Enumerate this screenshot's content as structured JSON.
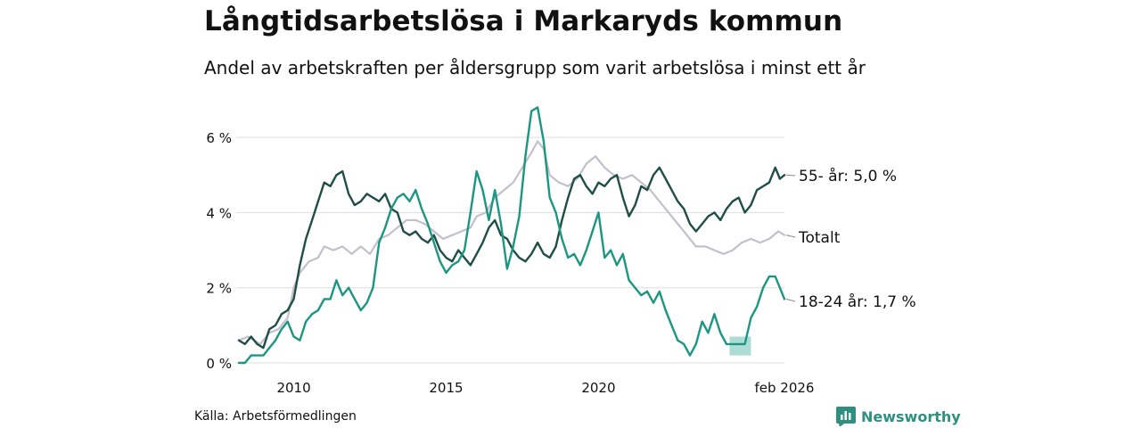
{
  "title": "Långtidsarbetslösa i Markaryds kommun",
  "subtitle": "Andel av arbetskraften per åldersgrupp som varit arbetslösa i minst ett år",
  "source": "Källa: Arbetsförmedlingen",
  "brand": "Newsworthy",
  "colors": {
    "older": "#1f4e45",
    "total": "#c3bfcb",
    "young": "#1c9683",
    "band": "#9ed6cc",
    "grid": "#dddddd",
    "brand": "#2f8f80"
  },
  "chart_data": {
    "type": "line",
    "title": "Långtidsarbetslösa i Markaryds kommun",
    "xlabel": "",
    "ylabel": "",
    "x_range": [
      2008.2,
      2026.1
    ],
    "ylim": [
      0,
      7
    ],
    "y_ticks": [
      0,
      2,
      4,
      6
    ],
    "y_tick_labels": [
      "0 %",
      "2 %",
      "4 %",
      "6 %"
    ],
    "x_ticks": [
      2010,
      2015,
      2020,
      2026.1
    ],
    "x_tick_labels": [
      "2010",
      "2015",
      "2020",
      "feb 2026"
    ],
    "grid": true,
    "series": [
      {
        "name": "Totalt",
        "label": "Totalt",
        "color_key": "total",
        "points": [
          [
            2008.2,
            0.6
          ],
          [
            2008.5,
            0.7
          ],
          [
            2008.9,
            0.5
          ],
          [
            2009.2,
            0.8
          ],
          [
            2009.5,
            0.9
          ],
          [
            2009.8,
            1.2
          ],
          [
            2010.0,
            2.0
          ],
          [
            2010.2,
            2.4
          ],
          [
            2010.5,
            2.7
          ],
          [
            2010.8,
            2.8
          ],
          [
            2011.0,
            3.1
          ],
          [
            2011.3,
            3.0
          ],
          [
            2011.6,
            3.1
          ],
          [
            2011.9,
            2.9
          ],
          [
            2012.2,
            3.1
          ],
          [
            2012.5,
            2.9
          ],
          [
            2012.8,
            3.3
          ],
          [
            2013.1,
            3.4
          ],
          [
            2013.4,
            3.6
          ],
          [
            2013.7,
            3.8
          ],
          [
            2014.0,
            3.8
          ],
          [
            2014.3,
            3.7
          ],
          [
            2014.6,
            3.5
          ],
          [
            2014.9,
            3.3
          ],
          [
            2015.2,
            3.4
          ],
          [
            2015.5,
            3.5
          ],
          [
            2015.8,
            3.6
          ],
          [
            2016.0,
            3.9
          ],
          [
            2016.3,
            4.0
          ],
          [
            2016.6,
            4.4
          ],
          [
            2016.9,
            4.6
          ],
          [
            2017.2,
            4.8
          ],
          [
            2017.5,
            5.2
          ],
          [
            2017.8,
            5.6
          ],
          [
            2018.0,
            5.9
          ],
          [
            2018.2,
            5.7
          ],
          [
            2018.4,
            5.0
          ],
          [
            2018.7,
            4.8
          ],
          [
            2019.0,
            4.7
          ],
          [
            2019.3,
            4.9
          ],
          [
            2019.6,
            5.3
          ],
          [
            2019.9,
            5.5
          ],
          [
            2020.2,
            5.2
          ],
          [
            2020.5,
            5.0
          ],
          [
            2020.8,
            4.9
          ],
          [
            2021.1,
            5.0
          ],
          [
            2021.4,
            4.8
          ],
          [
            2021.7,
            4.6
          ],
          [
            2022.0,
            4.3
          ],
          [
            2022.3,
            4.0
          ],
          [
            2022.6,
            3.7
          ],
          [
            2022.9,
            3.4
          ],
          [
            2023.2,
            3.1
          ],
          [
            2023.5,
            3.1
          ],
          [
            2023.8,
            3.0
          ],
          [
            2024.1,
            2.9
          ],
          [
            2024.4,
            3.0
          ],
          [
            2024.7,
            3.2
          ],
          [
            2025.0,
            3.3
          ],
          [
            2025.3,
            3.2
          ],
          [
            2025.6,
            3.3
          ],
          [
            2025.9,
            3.5
          ],
          [
            2026.1,
            3.4
          ]
        ]
      },
      {
        "name": "55- år",
        "label": "55- år: 5,0 %",
        "color_key": "older",
        "points": [
          [
            2008.2,
            0.6
          ],
          [
            2008.4,
            0.5
          ],
          [
            2008.6,
            0.7
          ],
          [
            2008.8,
            0.5
          ],
          [
            2009.0,
            0.4
          ],
          [
            2009.2,
            0.9
          ],
          [
            2009.4,
            1.0
          ],
          [
            2009.6,
            1.3
          ],
          [
            2009.8,
            1.4
          ],
          [
            2010.0,
            1.7
          ],
          [
            2010.2,
            2.6
          ],
          [
            2010.4,
            3.3
          ],
          [
            2010.6,
            3.8
          ],
          [
            2010.8,
            4.3
          ],
          [
            2011.0,
            4.8
          ],
          [
            2011.2,
            4.7
          ],
          [
            2011.4,
            5.0
          ],
          [
            2011.6,
            5.1
          ],
          [
            2011.8,
            4.5
          ],
          [
            2012.0,
            4.2
          ],
          [
            2012.2,
            4.3
          ],
          [
            2012.4,
            4.5
          ],
          [
            2012.6,
            4.4
          ],
          [
            2012.8,
            4.3
          ],
          [
            2013.0,
            4.5
          ],
          [
            2013.2,
            4.1
          ],
          [
            2013.4,
            4.0
          ],
          [
            2013.6,
            3.5
          ],
          [
            2013.8,
            3.4
          ],
          [
            2014.0,
            3.5
          ],
          [
            2014.2,
            3.3
          ],
          [
            2014.4,
            3.2
          ],
          [
            2014.6,
            3.4
          ],
          [
            2014.8,
            3.0
          ],
          [
            2015.0,
            2.8
          ],
          [
            2015.2,
            2.7
          ],
          [
            2015.4,
            3.0
          ],
          [
            2015.6,
            2.8
          ],
          [
            2015.8,
            2.6
          ],
          [
            2016.0,
            2.9
          ],
          [
            2016.2,
            3.2
          ],
          [
            2016.4,
            3.6
          ],
          [
            2016.6,
            3.8
          ],
          [
            2016.8,
            3.4
          ],
          [
            2017.0,
            3.3
          ],
          [
            2017.2,
            3.0
          ],
          [
            2017.4,
            2.8
          ],
          [
            2017.6,
            2.7
          ],
          [
            2017.8,
            2.9
          ],
          [
            2018.0,
            3.2
          ],
          [
            2018.2,
            2.9
          ],
          [
            2018.4,
            2.8
          ],
          [
            2018.6,
            3.1
          ],
          [
            2018.8,
            3.8
          ],
          [
            2019.0,
            4.4
          ],
          [
            2019.2,
            4.9
          ],
          [
            2019.4,
            5.0
          ],
          [
            2019.6,
            4.7
          ],
          [
            2019.8,
            4.5
          ],
          [
            2020.0,
            4.8
          ],
          [
            2020.2,
            4.7
          ],
          [
            2020.4,
            4.9
          ],
          [
            2020.6,
            5.0
          ],
          [
            2020.8,
            4.4
          ],
          [
            2021.0,
            3.9
          ],
          [
            2021.2,
            4.2
          ],
          [
            2021.4,
            4.7
          ],
          [
            2021.6,
            4.6
          ],
          [
            2021.8,
            5.0
          ],
          [
            2022.0,
            5.2
          ],
          [
            2022.2,
            4.9
          ],
          [
            2022.4,
            4.6
          ],
          [
            2022.6,
            4.3
          ],
          [
            2022.8,
            4.1
          ],
          [
            2023.0,
            3.7
          ],
          [
            2023.2,
            3.5
          ],
          [
            2023.4,
            3.7
          ],
          [
            2023.6,
            3.9
          ],
          [
            2023.8,
            4.0
          ],
          [
            2024.0,
            3.8
          ],
          [
            2024.2,
            4.1
          ],
          [
            2024.4,
            4.3
          ],
          [
            2024.6,
            4.4
          ],
          [
            2024.8,
            4.0
          ],
          [
            2025.0,
            4.2
          ],
          [
            2025.2,
            4.6
          ],
          [
            2025.4,
            4.7
          ],
          [
            2025.6,
            4.8
          ],
          [
            2025.8,
            5.2
          ],
          [
            2025.95,
            4.9
          ],
          [
            2026.1,
            5.0
          ]
        ]
      },
      {
        "name": "18-24 år",
        "label": "18-24 år: 1,7 %",
        "color_key": "young",
        "points": [
          [
            2008.2,
            0.0
          ],
          [
            2008.4,
            0.0
          ],
          [
            2008.6,
            0.2
          ],
          [
            2008.8,
            0.2
          ],
          [
            2009.0,
            0.2
          ],
          [
            2009.2,
            0.4
          ],
          [
            2009.4,
            0.6
          ],
          [
            2009.6,
            0.9
          ],
          [
            2009.8,
            1.1
          ],
          [
            2010.0,
            0.7
          ],
          [
            2010.2,
            0.6
          ],
          [
            2010.4,
            1.1
          ],
          [
            2010.6,
            1.3
          ],
          [
            2010.8,
            1.4
          ],
          [
            2011.0,
            1.7
          ],
          [
            2011.2,
            1.7
          ],
          [
            2011.4,
            2.2
          ],
          [
            2011.6,
            1.8
          ],
          [
            2011.8,
            2.0
          ],
          [
            2012.0,
            1.7
          ],
          [
            2012.2,
            1.4
          ],
          [
            2012.4,
            1.6
          ],
          [
            2012.6,
            2.0
          ],
          [
            2012.8,
            3.2
          ],
          [
            2013.0,
            3.6
          ],
          [
            2013.2,
            4.1
          ],
          [
            2013.4,
            4.4
          ],
          [
            2013.6,
            4.5
          ],
          [
            2013.8,
            4.3
          ],
          [
            2014.0,
            4.6
          ],
          [
            2014.2,
            4.1
          ],
          [
            2014.4,
            3.7
          ],
          [
            2014.6,
            3.2
          ],
          [
            2014.8,
            2.7
          ],
          [
            2015.0,
            2.4
          ],
          [
            2015.2,
            2.6
          ],
          [
            2015.4,
            2.7
          ],
          [
            2015.6,
            3.0
          ],
          [
            2015.8,
            4.0
          ],
          [
            2016.0,
            5.1
          ],
          [
            2016.2,
            4.6
          ],
          [
            2016.4,
            3.8
          ],
          [
            2016.6,
            4.6
          ],
          [
            2016.8,
            3.7
          ],
          [
            2017.0,
            2.5
          ],
          [
            2017.2,
            3.1
          ],
          [
            2017.4,
            3.9
          ],
          [
            2017.6,
            5.5
          ],
          [
            2017.8,
            6.7
          ],
          [
            2018.0,
            6.8
          ],
          [
            2018.2,
            5.9
          ],
          [
            2018.4,
            4.4
          ],
          [
            2018.6,
            4.0
          ],
          [
            2018.8,
            3.3
          ],
          [
            2019.0,
            2.8
          ],
          [
            2019.2,
            2.9
          ],
          [
            2019.4,
            2.6
          ],
          [
            2019.6,
            3.0
          ],
          [
            2019.8,
            3.5
          ],
          [
            2020.0,
            4.0
          ],
          [
            2020.2,
            2.8
          ],
          [
            2020.4,
            3.0
          ],
          [
            2020.6,
            2.6
          ],
          [
            2020.8,
            2.9
          ],
          [
            2021.0,
            2.2
          ],
          [
            2021.2,
            2.0
          ],
          [
            2021.4,
            1.8
          ],
          [
            2021.6,
            1.9
          ],
          [
            2021.8,
            1.6
          ],
          [
            2022.0,
            1.9
          ],
          [
            2022.2,
            1.4
          ],
          [
            2022.4,
            1.0
          ],
          [
            2022.6,
            0.6
          ],
          [
            2022.8,
            0.5
          ],
          [
            2023.0,
            0.2
          ],
          [
            2023.2,
            0.5
          ],
          [
            2023.4,
            1.1
          ],
          [
            2023.6,
            0.8
          ],
          [
            2023.8,
            1.3
          ],
          [
            2024.0,
            0.8
          ],
          [
            2024.2,
            0.5
          ],
          [
            2024.4,
            0.5
          ],
          [
            2024.6,
            0.5
          ],
          [
            2024.8,
            0.5
          ],
          [
            2025.0,
            1.2
          ],
          [
            2025.2,
            1.5
          ],
          [
            2025.4,
            2.0
          ],
          [
            2025.6,
            2.3
          ],
          [
            2025.8,
            2.3
          ],
          [
            2025.95,
            2.0
          ],
          [
            2026.1,
            1.7
          ]
        ]
      }
    ],
    "uncertainty_band": {
      "series": "18-24 år",
      "x_range": [
        2024.3,
        2025.0
      ],
      "lower": 0.2,
      "upper": 0.7
    }
  }
}
